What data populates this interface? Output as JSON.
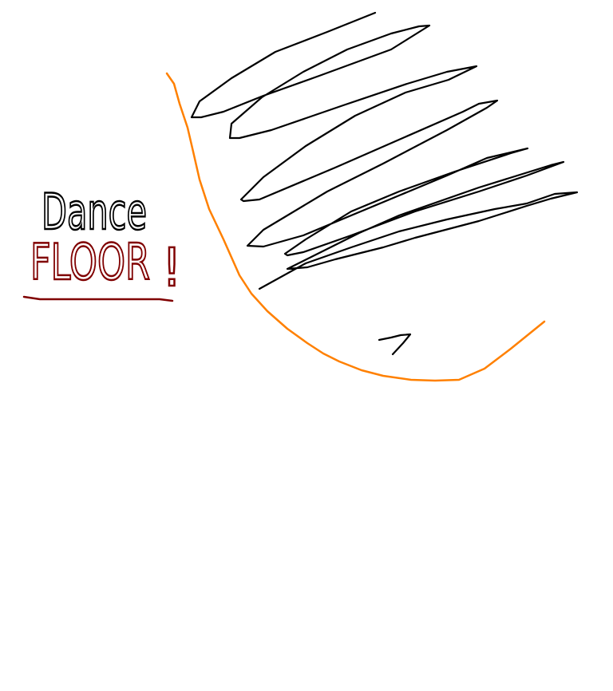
{
  "drawing": {
    "words": {
      "line1": "Dance",
      "line2": "FLOOR",
      "exclamation": "!"
    },
    "colors": {
      "background": "#ffffff",
      "ink": "#000000",
      "floor_text": "#800000",
      "curve": "#ff8000"
    }
  }
}
